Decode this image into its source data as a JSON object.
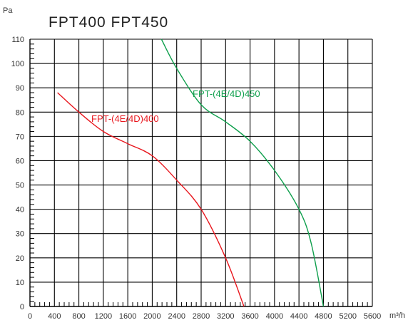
{
  "chart_data": {
    "type": "line",
    "title": "FPT400    FPT450",
    "ylabel": "Pa",
    "xlabel": "m³/h",
    "xlim": [
      0,
      5600
    ],
    "ylim": [
      0,
      110
    ],
    "x_ticks": [
      0,
      400,
      800,
      1200,
      1600,
      2000,
      2400,
      2800,
      3200,
      3600,
      4000,
      4400,
      4800,
      5200,
      5600
    ],
    "y_ticks": [
      0,
      10,
      20,
      30,
      40,
      50,
      60,
      70,
      80,
      90,
      100,
      110
    ],
    "grid": true,
    "series": [
      {
        "name": "FPT-(4E/4D)400",
        "color": "#e8161d",
        "points": [
          [
            450,
            88
          ],
          [
            800,
            80
          ],
          [
            1200,
            72
          ],
          [
            1600,
            67
          ],
          [
            2000,
            62
          ],
          [
            2400,
            52
          ],
          [
            2800,
            40
          ],
          [
            3200,
            20
          ],
          [
            3500,
            0
          ]
        ]
      },
      {
        "name": "FPT-(4E/4D)450",
        "color": "#0e9f4c",
        "points": [
          [
            2150,
            110
          ],
          [
            2400,
            98
          ],
          [
            2800,
            83
          ],
          [
            3200,
            76
          ],
          [
            3600,
            68
          ],
          [
            4000,
            56
          ],
          [
            4400,
            40
          ],
          [
            4600,
            26
          ],
          [
            4800,
            0
          ]
        ]
      }
    ]
  }
}
